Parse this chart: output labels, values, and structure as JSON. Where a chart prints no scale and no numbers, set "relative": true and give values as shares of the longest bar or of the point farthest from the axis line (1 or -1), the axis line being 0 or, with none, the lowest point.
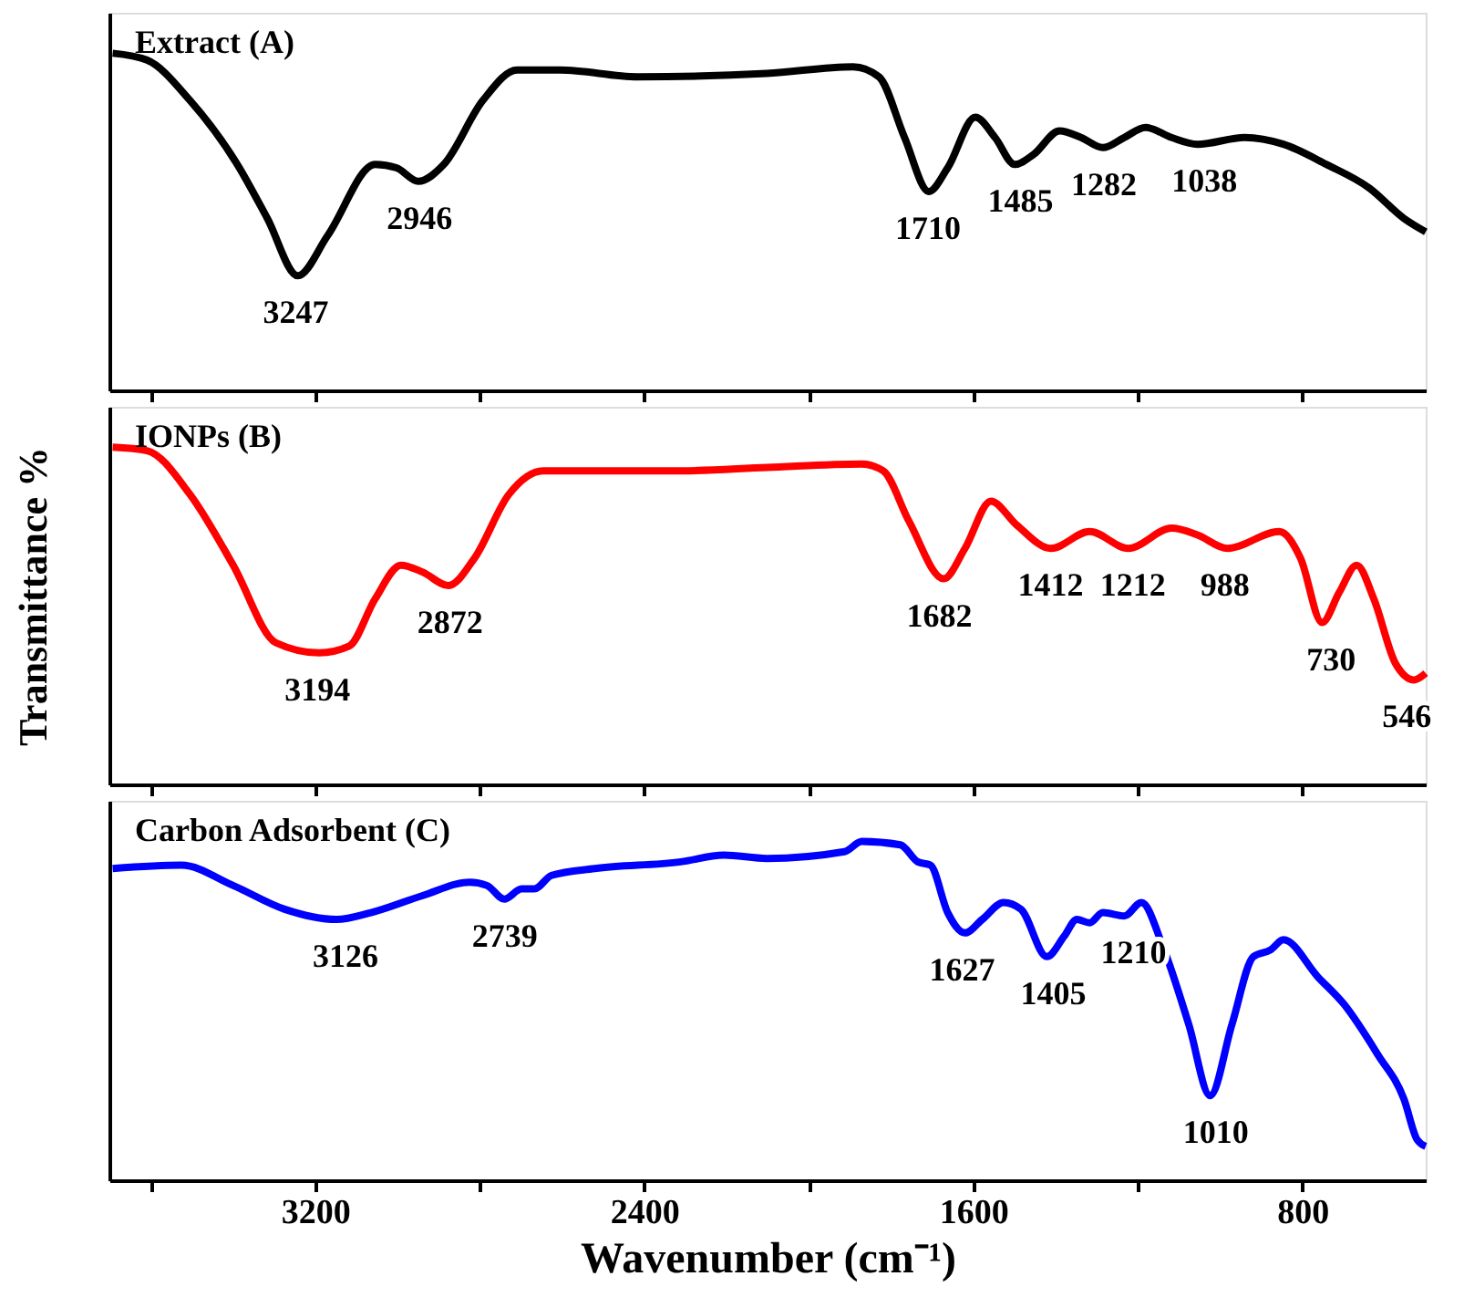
{
  "chart_data": [
    {
      "type": "line",
      "title": "Extract (A)",
      "relative": true,
      "xlim": [
        3700,
        500
      ],
      "xticks": [
        {
          "value": 3600,
          "label": null
        },
        3200,
        {
          "value": 2800,
          "label": null
        },
        2400,
        {
          "value": 2000,
          "label": null
        },
        1600,
        {
          "value": 1200,
          "label": null
        },
        800
      ],
      "tick_labels": false,
      "grid": false,
      "series": [
        {
          "color": "#000000",
          "x": [
            3692,
            3609,
            3504,
            3389,
            3316,
            3242,
            3169,
            3054,
            3002,
            2949,
            2887,
            2792,
            2709,
            2604,
            2416,
            2102,
            1892,
            1829,
            1767,
            1708,
            1662,
            1595,
            1547,
            1499,
            1453,
            1390,
            1338,
            1285,
            1233,
            1181,
            1118,
            1055,
            940,
            846,
            741,
            637,
            553,
            500
          ],
          "values": [
            1.0,
            0.98,
            0.86,
            0.67,
            0.51,
            0.34,
            0.46,
            0.67,
            0.66,
            0.62,
            0.67,
            0.86,
            0.95,
            0.95,
            0.93,
            0.94,
            0.96,
            0.93,
            0.75,
            0.59,
            0.66,
            0.81,
            0.75,
            0.67,
            0.7,
            0.77,
            0.75,
            0.72,
            0.75,
            0.78,
            0.75,
            0.73,
            0.75,
            0.73,
            0.67,
            0.6,
            0.51,
            0.47
          ]
        }
      ],
      "annotations": [
        {
          "text": "3247",
          "x": 3247,
          "y": 0.34
        },
        {
          "text": "2946",
          "x": 2946,
          "y": 0.62
        },
        {
          "text": "1710",
          "x": 1710,
          "y": 0.59
        },
        {
          "text": "1485",
          "x": 1485,
          "y": 0.67
        },
        {
          "text": "1282",
          "x": 1282,
          "y": 0.72
        },
        {
          "text": "1038",
          "x": 1038,
          "y": 0.73
        }
      ]
    },
    {
      "type": "line",
      "title": "IONPs (B)",
      "ylabel": "Transmittance %",
      "relative": true,
      "xlim": [
        3700,
        500
      ],
      "xticks": [
        {
          "value": 3600,
          "label": null
        },
        3200,
        {
          "value": 2800,
          "label": null
        },
        2400,
        {
          "value": 2000,
          "label": null
        },
        1600,
        {
          "value": 1200,
          "label": null
        },
        800
      ],
      "tick_labels": false,
      "grid": false,
      "series": [
        {
          "color": "#ff0000",
          "x": [
            3692,
            3609,
            3504,
            3399,
            3295,
            3190,
            3117,
            3054,
            2991,
            2939,
            2876,
            2813,
            2729,
            2646,
            2520,
            2311,
            2102,
            1871,
            1819,
            1756,
            1672,
            1620,
            1557,
            1495,
            1411,
            1317,
            1223,
            1118,
            1055,
            982,
            856,
            804,
            752,
            710,
            668,
            626,
            574,
            528,
            500
          ],
          "values": [
            1.0,
            0.99,
            0.86,
            0.65,
            0.42,
            0.39,
            0.41,
            0.55,
            0.65,
            0.63,
            0.59,
            0.67,
            0.86,
            0.93,
            0.93,
            0.93,
            0.94,
            0.95,
            0.93,
            0.78,
            0.61,
            0.7,
            0.84,
            0.77,
            0.7,
            0.75,
            0.7,
            0.76,
            0.74,
            0.7,
            0.75,
            0.67,
            0.48,
            0.57,
            0.65,
            0.55,
            0.36,
            0.31,
            0.33
          ]
        }
      ],
      "annotations": [
        {
          "text": "3194",
          "x": 3194,
          "y": 0.39
        },
        {
          "text": "2872",
          "x": 2872,
          "y": 0.59
        },
        {
          "text": "1682",
          "x": 1682,
          "y": 0.61
        },
        {
          "text": "1412",
          "x": 1412,
          "y": 0.7
        },
        {
          "text": "1212",
          "x": 1212,
          "y": 0.7
        },
        {
          "text": "988",
          "x": 988,
          "y": 0.7
        },
        {
          "text": "730",
          "x": 730,
          "y": 0.48
        },
        {
          "text": "546",
          "x": 546,
          "y": 0.31
        }
      ]
    },
    {
      "type": "line",
      "title": "Carbon Adsorbent (C)",
      "xlabel": "Wavenumber (cm⁻¹)",
      "relative": true,
      "xlim": [
        3700,
        500
      ],
      "xticks": [
        {
          "value": 3600,
          "label": null
        },
        3200,
        {
          "value": 2800,
          "label": null
        },
        2400,
        {
          "value": 2000,
          "label": null
        },
        1600,
        {
          "value": 1200,
          "label": null
        },
        800
      ],
      "tick_labels": "x",
      "grid": false,
      "series": [
        {
          "color": "#0000ff",
          "x": [
            3692,
            3525,
            3399,
            3274,
            3148,
            3064,
            2939,
            2824,
            2782,
            2740,
            2698,
            2667,
            2625,
            2520,
            2311,
            2206,
            2102,
            1913,
            1871,
            1777,
            1735,
            1704,
            1662,
            1620,
            1578,
            1526,
            1484,
            1421,
            1379,
            1348,
            1317,
            1285,
            1233,
            1191,
            1139,
            1076,
            1024,
            971,
            919,
            877,
            846,
            762,
            699,
            616,
            553,
            521,
            500
          ],
          "values": [
            0.92,
            0.93,
            0.87,
            0.8,
            0.77,
            0.79,
            0.84,
            0.88,
            0.87,
            0.83,
            0.86,
            0.86,
            0.9,
            0.92,
            0.94,
            0.96,
            0.95,
            0.97,
            1.0,
            0.99,
            0.94,
            0.93,
            0.79,
            0.73,
            0.77,
            0.82,
            0.8,
            0.66,
            0.72,
            0.77,
            0.76,
            0.79,
            0.78,
            0.82,
            0.69,
            0.46,
            0.25,
            0.46,
            0.66,
            0.68,
            0.71,
            0.6,
            0.52,
            0.37,
            0.24,
            0.12,
            0.1
          ]
        }
      ],
      "annotations": [
        {
          "text": "3126",
          "x": 3126,
          "y": 0.77
        },
        {
          "text": "2739",
          "x": 2739,
          "y": 0.83
        },
        {
          "text": "1627",
          "x": 1627,
          "y": 0.73
        },
        {
          "text": "1405",
          "x": 1405,
          "y": 0.66
        },
        {
          "text": "1210",
          "x": 1210,
          "y": 0.78
        },
        {
          "text": "1010",
          "x": 1010,
          "y": 0.25
        }
      ]
    }
  ]
}
